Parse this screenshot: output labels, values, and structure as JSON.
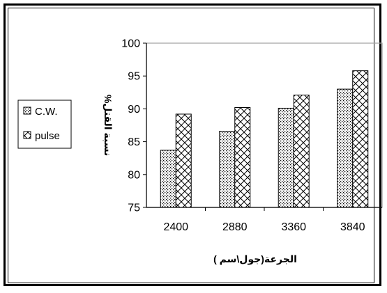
{
  "chart_data": {
    "type": "bar",
    "categories": [
      "2400",
      "2880",
      "3360",
      "3840"
    ],
    "series": [
      {
        "name": "C.W.",
        "values": [
          83.7,
          86.6,
          90.1,
          93.0
        ],
        "pattern": "dots"
      },
      {
        "name": "pulse",
        "values": [
          89.2,
          90.2,
          92.1,
          95.8
        ],
        "pattern": "crosshatch"
      }
    ],
    "xlabel": "الجرعة(جول\\سم )",
    "ylabel": "نسبة القتل%",
    "ylim": [
      75,
      100
    ],
    "yticks": [
      "75",
      "80",
      "85",
      "90",
      "95",
      "100"
    ],
    "legend_position": "left",
    "plot_border_color": "#a0a0a0",
    "bar_stroke_color": "#000000"
  }
}
